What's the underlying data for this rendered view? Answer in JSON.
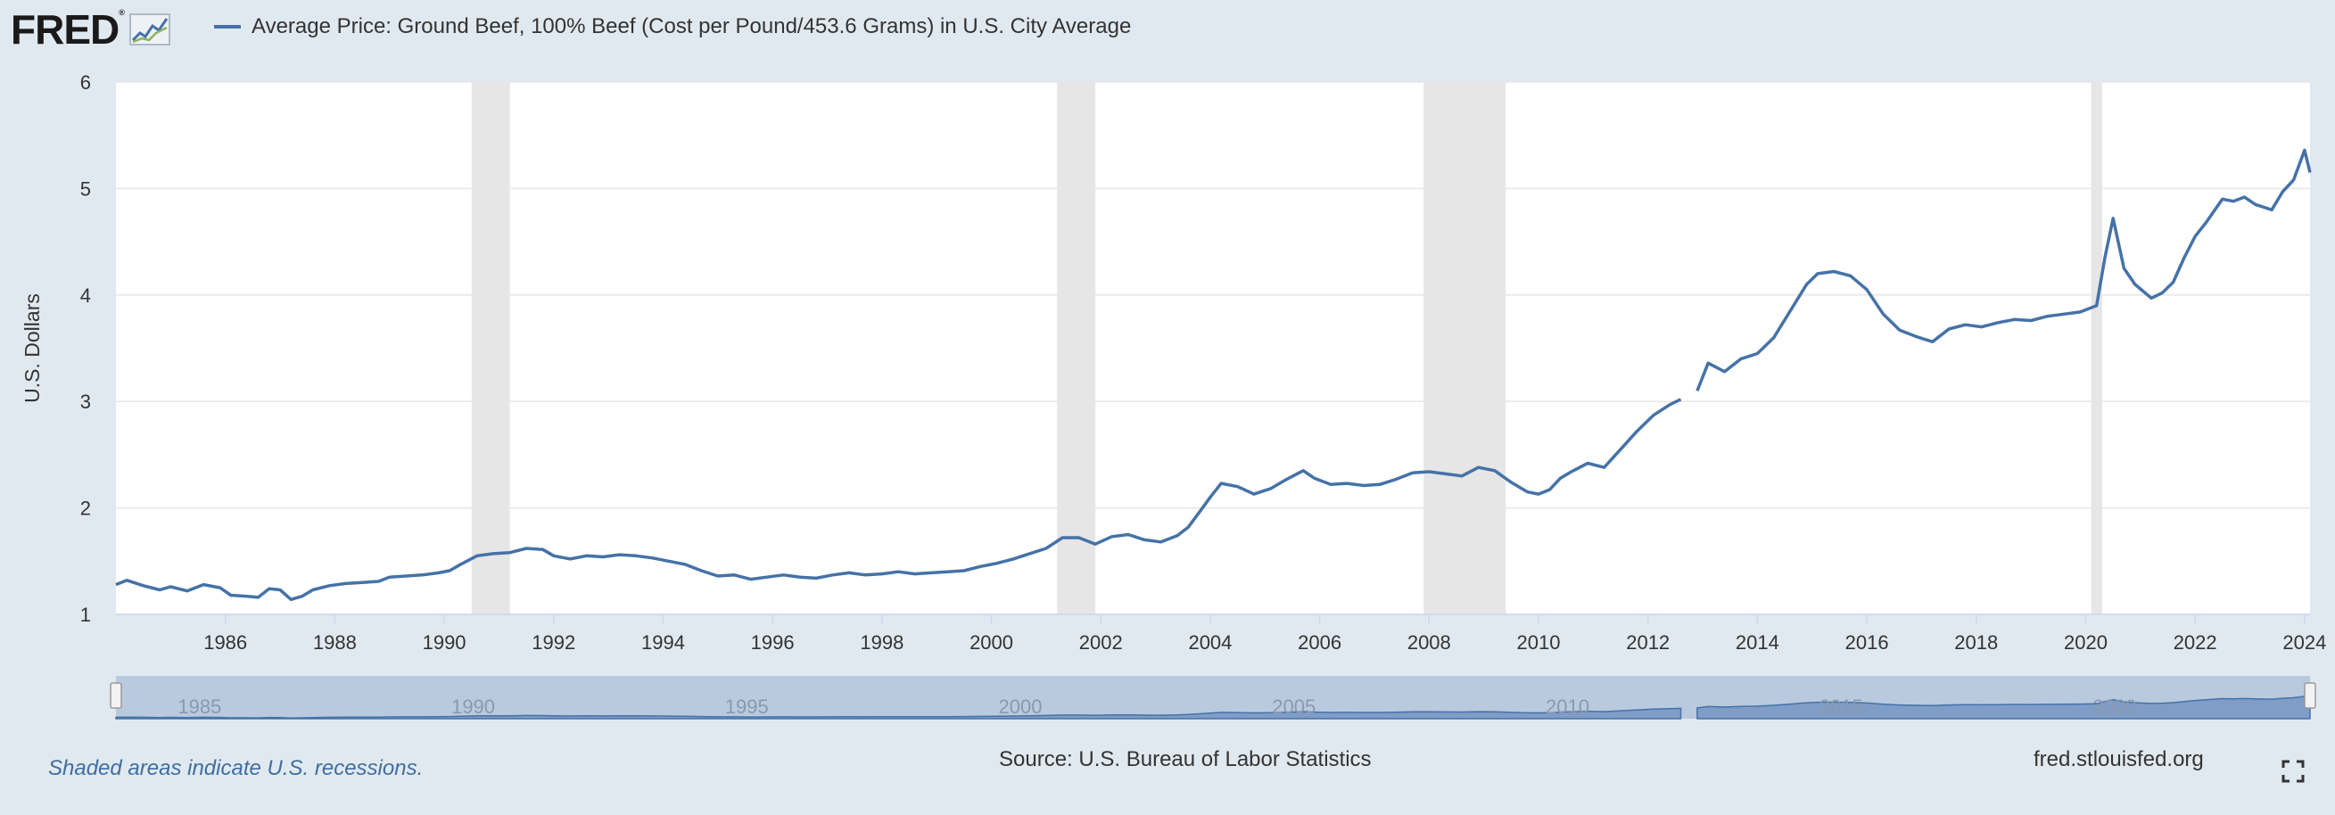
{
  "brand": {
    "logo_text": "FRED",
    "logo_mark": "®"
  },
  "legend": {
    "series_name": "Average Price: Ground Beef, 100% Beef (Cost per Pound/453.6 Grams) in U.S. City Average",
    "color": "#4572a7"
  },
  "footer": {
    "note": "Shaded areas indicate U.S. recessions.",
    "source": "Source: U.S. Bureau of Labor Statistics",
    "site": "fred.stlouisfed.org"
  },
  "icons": {
    "fullscreen": "expand-icon",
    "logo": "fred-graph-icon"
  },
  "chart_data": {
    "type": "line",
    "ylabel": "U.S. Dollars",
    "xlabel": "",
    "ylim": [
      1,
      6
    ],
    "xlim": [
      1984.0,
      2024.1
    ],
    "yticks": [
      1,
      2,
      3,
      4,
      5,
      6
    ],
    "xticks": [
      1986,
      1988,
      1990,
      1992,
      1994,
      1996,
      1998,
      2000,
      2002,
      2004,
      2006,
      2008,
      2010,
      2012,
      2014,
      2016,
      2018,
      2020,
      2022,
      2024
    ],
    "grid": true,
    "recessions": [
      [
        1990.5,
        1991.2
      ],
      [
        2001.2,
        2001.9
      ],
      [
        2007.9,
        2009.4
      ],
      [
        2020.1,
        2020.3
      ]
    ],
    "navigator_ticks": [
      1985,
      1990,
      1995,
      2000,
      2005,
      2010,
      2015,
      2020
    ],
    "series": [
      {
        "name": "Average Price: Ground Beef, 100% Beef (Cost per Pound/453.6 Grams) in U.S. City Average",
        "color": "#4572a7",
        "segments": [
          [
            [
              1984.0,
              1.28
            ],
            [
              1984.2,
              1.32
            ],
            [
              1984.5,
              1.27
            ],
            [
              1984.8,
              1.23
            ],
            [
              1985.0,
              1.26
            ],
            [
              1985.3,
              1.22
            ],
            [
              1985.6,
              1.28
            ],
            [
              1985.9,
              1.25
            ],
            [
              1986.1,
              1.18
            ],
            [
              1986.4,
              1.17
            ],
            [
              1986.6,
              1.16
            ],
            [
              1986.8,
              1.24
            ],
            [
              1987.0,
              1.23
            ],
            [
              1987.2,
              1.14
            ],
            [
              1987.4,
              1.17
            ],
            [
              1987.6,
              1.23
            ],
            [
              1987.9,
              1.27
            ],
            [
              1988.2,
              1.29
            ],
            [
              1988.5,
              1.3
            ],
            [
              1988.8,
              1.31
            ],
            [
              1989.0,
              1.35
            ],
            [
              1989.3,
              1.36
            ],
            [
              1989.6,
              1.37
            ],
            [
              1989.9,
              1.39
            ],
            [
              1990.1,
              1.41
            ],
            [
              1990.3,
              1.47
            ],
            [
              1990.6,
              1.55
            ],
            [
              1990.9,
              1.57
            ],
            [
              1991.2,
              1.58
            ],
            [
              1991.5,
              1.62
            ],
            [
              1991.8,
              1.61
            ],
            [
              1992.0,
              1.55
            ],
            [
              1992.3,
              1.52
            ],
            [
              1992.6,
              1.55
            ],
            [
              1992.9,
              1.54
            ],
            [
              1993.2,
              1.56
            ],
            [
              1993.5,
              1.55
            ],
            [
              1993.8,
              1.53
            ],
            [
              1994.1,
              1.5
            ],
            [
              1994.4,
              1.47
            ],
            [
              1994.7,
              1.41
            ],
            [
              1995.0,
              1.36
            ],
            [
              1995.3,
              1.37
            ],
            [
              1995.6,
              1.33
            ],
            [
              1995.9,
              1.35
            ],
            [
              1996.2,
              1.37
            ],
            [
              1996.5,
              1.35
            ],
            [
              1996.8,
              1.34
            ],
            [
              1997.1,
              1.37
            ],
            [
              1997.4,
              1.39
            ],
            [
              1997.7,
              1.37
            ],
            [
              1998.0,
              1.38
            ],
            [
              1998.3,
              1.4
            ],
            [
              1998.6,
              1.38
            ],
            [
              1998.9,
              1.39
            ],
            [
              1999.2,
              1.4
            ],
            [
              1999.5,
              1.41
            ],
            [
              1999.8,
              1.45
            ],
            [
              2000.1,
              1.48
            ],
            [
              2000.4,
              1.52
            ],
            [
              2000.7,
              1.57
            ],
            [
              2001.0,
              1.62
            ],
            [
              2001.3,
              1.72
            ],
            [
              2001.6,
              1.72
            ],
            [
              2001.9,
              1.66
            ],
            [
              2002.2,
              1.73
            ],
            [
              2002.5,
              1.75
            ],
            [
              2002.8,
              1.7
            ],
            [
              2003.1,
              1.68
            ],
            [
              2003.4,
              1.74
            ],
            [
              2003.6,
              1.82
            ],
            [
              2003.8,
              1.96
            ],
            [
              2004.0,
              2.1
            ],
            [
              2004.2,
              2.23
            ],
            [
              2004.5,
              2.2
            ],
            [
              2004.8,
              2.13
            ],
            [
              2005.1,
              2.18
            ],
            [
              2005.4,
              2.27
            ],
            [
              2005.7,
              2.35
            ],
            [
              2005.9,
              2.28
            ],
            [
              2006.2,
              2.22
            ],
            [
              2006.5,
              2.23
            ],
            [
              2006.8,
              2.21
            ],
            [
              2007.1,
              2.22
            ],
            [
              2007.4,
              2.27
            ],
            [
              2007.7,
              2.33
            ],
            [
              2008.0,
              2.34
            ],
            [
              2008.3,
              2.32
            ],
            [
              2008.6,
              2.3
            ],
            [
              2008.9,
              2.38
            ],
            [
              2009.2,
              2.35
            ],
            [
              2009.5,
              2.24
            ],
            [
              2009.8,
              2.15
            ],
            [
              2010.0,
              2.13
            ],
            [
              2010.2,
              2.17
            ],
            [
              2010.4,
              2.28
            ],
            [
              2010.6,
              2.34
            ],
            [
              2010.9,
              2.42
            ],
            [
              2011.2,
              2.38
            ],
            [
              2011.5,
              2.55
            ],
            [
              2011.8,
              2.72
            ],
            [
              2012.1,
              2.87
            ],
            [
              2012.4,
              2.97
            ],
            [
              2012.6,
              3.02
            ]
          ],
          [
            [
              2012.9,
              3.1
            ],
            [
              2013.1,
              3.36
            ],
            [
              2013.4,
              3.28
            ],
            [
              2013.7,
              3.4
            ],
            [
              2014.0,
              3.45
            ],
            [
              2014.3,
              3.6
            ],
            [
              2014.6,
              3.85
            ],
            [
              2014.9,
              4.1
            ],
            [
              2015.1,
              4.2
            ],
            [
              2015.4,
              4.22
            ],
            [
              2015.7,
              4.18
            ],
            [
              2016.0,
              4.05
            ],
            [
              2016.3,
              3.82
            ],
            [
              2016.6,
              3.67
            ],
            [
              2016.9,
              3.61
            ],
            [
              2017.2,
              3.56
            ],
            [
              2017.5,
              3.68
            ],
            [
              2017.8,
              3.72
            ],
            [
              2018.1,
              3.7
            ],
            [
              2018.4,
              3.74
            ],
            [
              2018.7,
              3.77
            ],
            [
              2019.0,
              3.76
            ],
            [
              2019.3,
              3.8
            ],
            [
              2019.6,
              3.82
            ],
            [
              2019.9,
              3.84
            ],
            [
              2020.2,
              3.9
            ],
            [
              2020.35,
              4.35
            ],
            [
              2020.5,
              4.72
            ],
            [
              2020.7,
              4.25
            ],
            [
              2020.9,
              4.1
            ],
            [
              2021.2,
              3.97
            ],
            [
              2021.4,
              4.02
            ],
            [
              2021.6,
              4.12
            ],
            [
              2021.8,
              4.35
            ],
            [
              2022.0,
              4.55
            ],
            [
              2022.2,
              4.68
            ],
            [
              2022.5,
              4.9
            ],
            [
              2022.7,
              4.88
            ],
            [
              2022.9,
              4.92
            ],
            [
              2023.1,
              4.85
            ],
            [
              2023.4,
              4.8
            ],
            [
              2023.6,
              4.97
            ],
            [
              2023.8,
              5.08
            ],
            [
              2024.0,
              5.36
            ],
            [
              2024.1,
              5.15
            ]
          ]
        ]
      }
    ]
  }
}
